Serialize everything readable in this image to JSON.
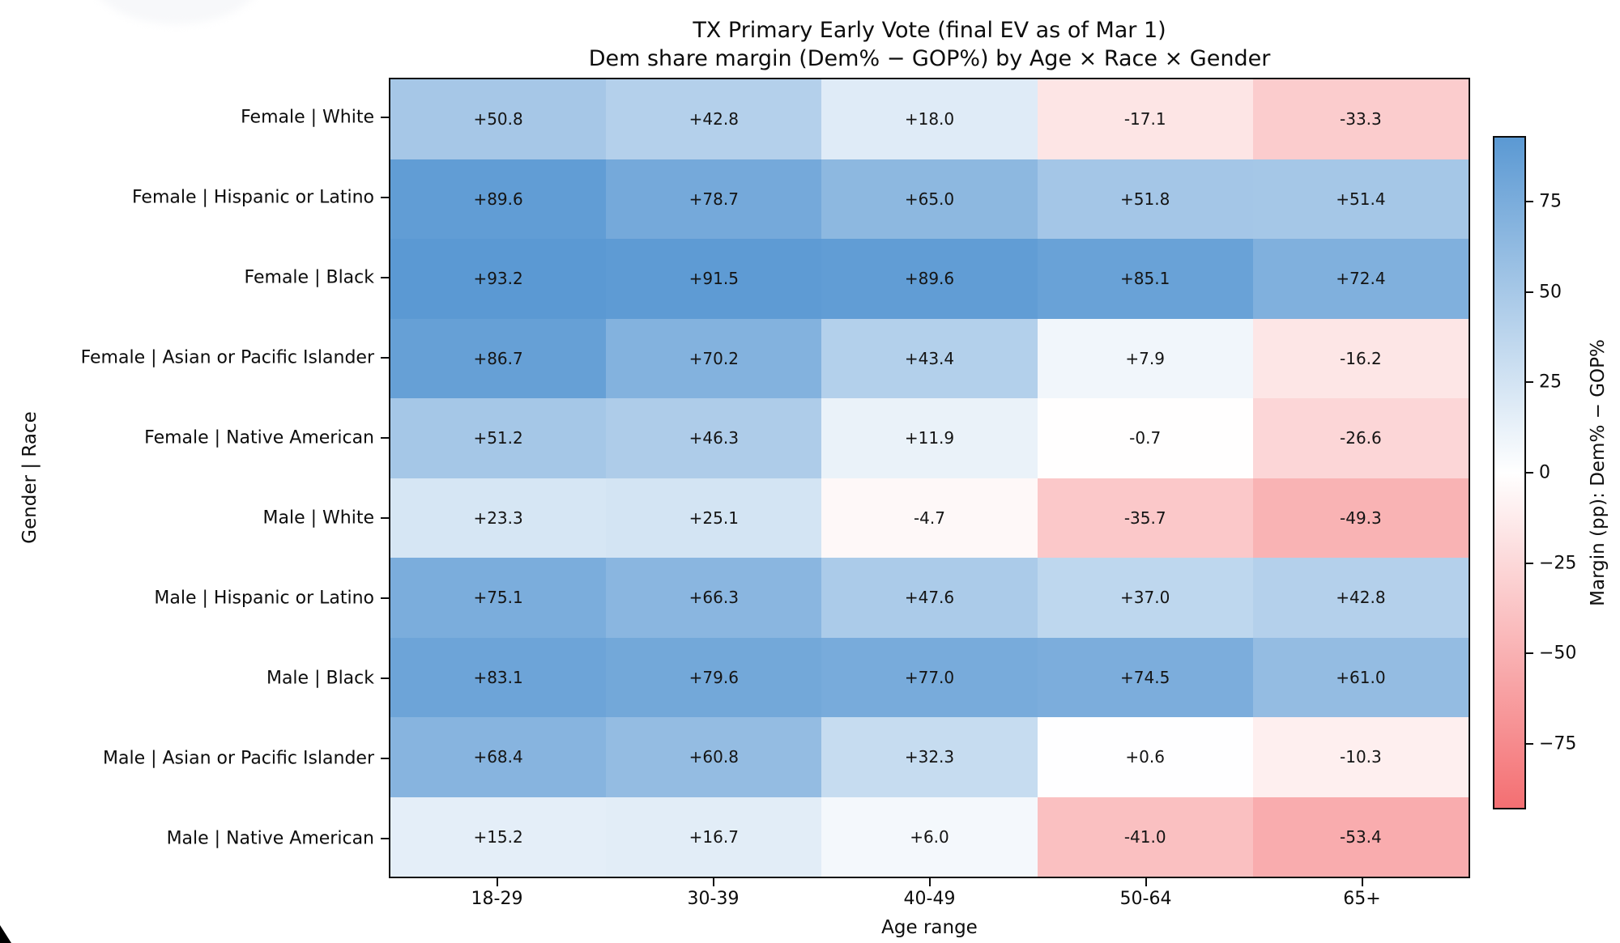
{
  "chart_data": {
    "type": "heatmap",
    "title": "TX Primary Early Vote (final EV as of Mar 1)",
    "subtitle": "Dem share margin (Dem% − GOP%) by Age × Race × Gender",
    "xlabel": "Age range",
    "ylabel": "Gender | Race",
    "x_categories": [
      "18-29",
      "30-39",
      "40-49",
      "50-64",
      "65+"
    ],
    "y_categories": [
      "Female | White",
      "Female | Hispanic or Latino",
      "Female | Black",
      "Female | Asian or Pacific Islander",
      "Female | Native American",
      "Male | White",
      "Male | Hispanic or Latino",
      "Male | Black",
      "Male | Asian or Pacific Islander",
      "Male | Native American"
    ],
    "values": [
      [
        50.8,
        42.8,
        18.0,
        -17.1,
        -33.3
      ],
      [
        89.6,
        78.7,
        65.0,
        51.8,
        51.4
      ],
      [
        93.2,
        91.5,
        89.6,
        85.1,
        72.4
      ],
      [
        86.7,
        70.2,
        43.4,
        7.9,
        -16.2
      ],
      [
        51.2,
        46.3,
        11.9,
        -0.7,
        -26.6
      ],
      [
        23.3,
        25.1,
        -4.7,
        -35.7,
        -49.3
      ],
      [
        75.1,
        66.3,
        47.6,
        37.0,
        42.8
      ],
      [
        83.1,
        79.6,
        77.0,
        74.5,
        61.0
      ],
      [
        68.4,
        60.8,
        32.3,
        0.6,
        -10.3
      ],
      [
        15.2,
        16.7,
        6.0,
        -41.0,
        -53.4
      ]
    ],
    "cell_label_format": "signed_one_decimal",
    "colorbar": {
      "label": "Margin (pp): Dem% − GOP%",
      "tick_labels": [
        "75",
        "50",
        "25",
        "0",
        "−25",
        "−50",
        "−75"
      ],
      "tick_values": [
        75,
        50,
        25,
        0,
        -25,
        -50,
        -75
      ],
      "vmin": -93.2,
      "vmax": 93.2
    },
    "colors": {
      "positive_end": "#5b99d3",
      "midpoint": "#ffffff",
      "negative_end": "#f46f72",
      "text": "#141414"
    },
    "grid": false,
    "legend_position": "colorbar-right"
  }
}
